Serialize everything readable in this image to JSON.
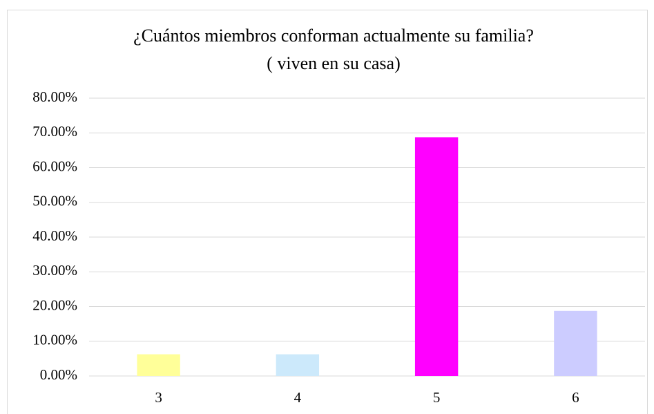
{
  "chart_data": {
    "type": "bar",
    "title": [
      "¿Cuántos miembros conforman actualmente  su familia?",
      "( viven en su casa)"
    ],
    "categories": [
      "3",
      "4",
      "5",
      "6"
    ],
    "values": [
      6.25,
      6.25,
      68.75,
      18.75
    ],
    "colors": [
      "#ffff99",
      "#cce9fb",
      "#ff00ff",
      "#ccccff"
    ],
    "ylim": [
      0,
      80
    ],
    "yticks": [
      {
        "value": 0,
        "label": "0.00%"
      },
      {
        "value": 10,
        "label": "10.00%"
      },
      {
        "value": 20,
        "label": "20.00%"
      },
      {
        "value": 30,
        "label": "30.00%"
      },
      {
        "value": 40,
        "label": "40.00%"
      },
      {
        "value": 50,
        "label": "50.00%"
      },
      {
        "value": 60,
        "label": "60.00%"
      },
      {
        "value": 70,
        "label": "70.00%"
      },
      {
        "value": 80,
        "label": "80.00%"
      }
    ],
    "grid": true
  }
}
